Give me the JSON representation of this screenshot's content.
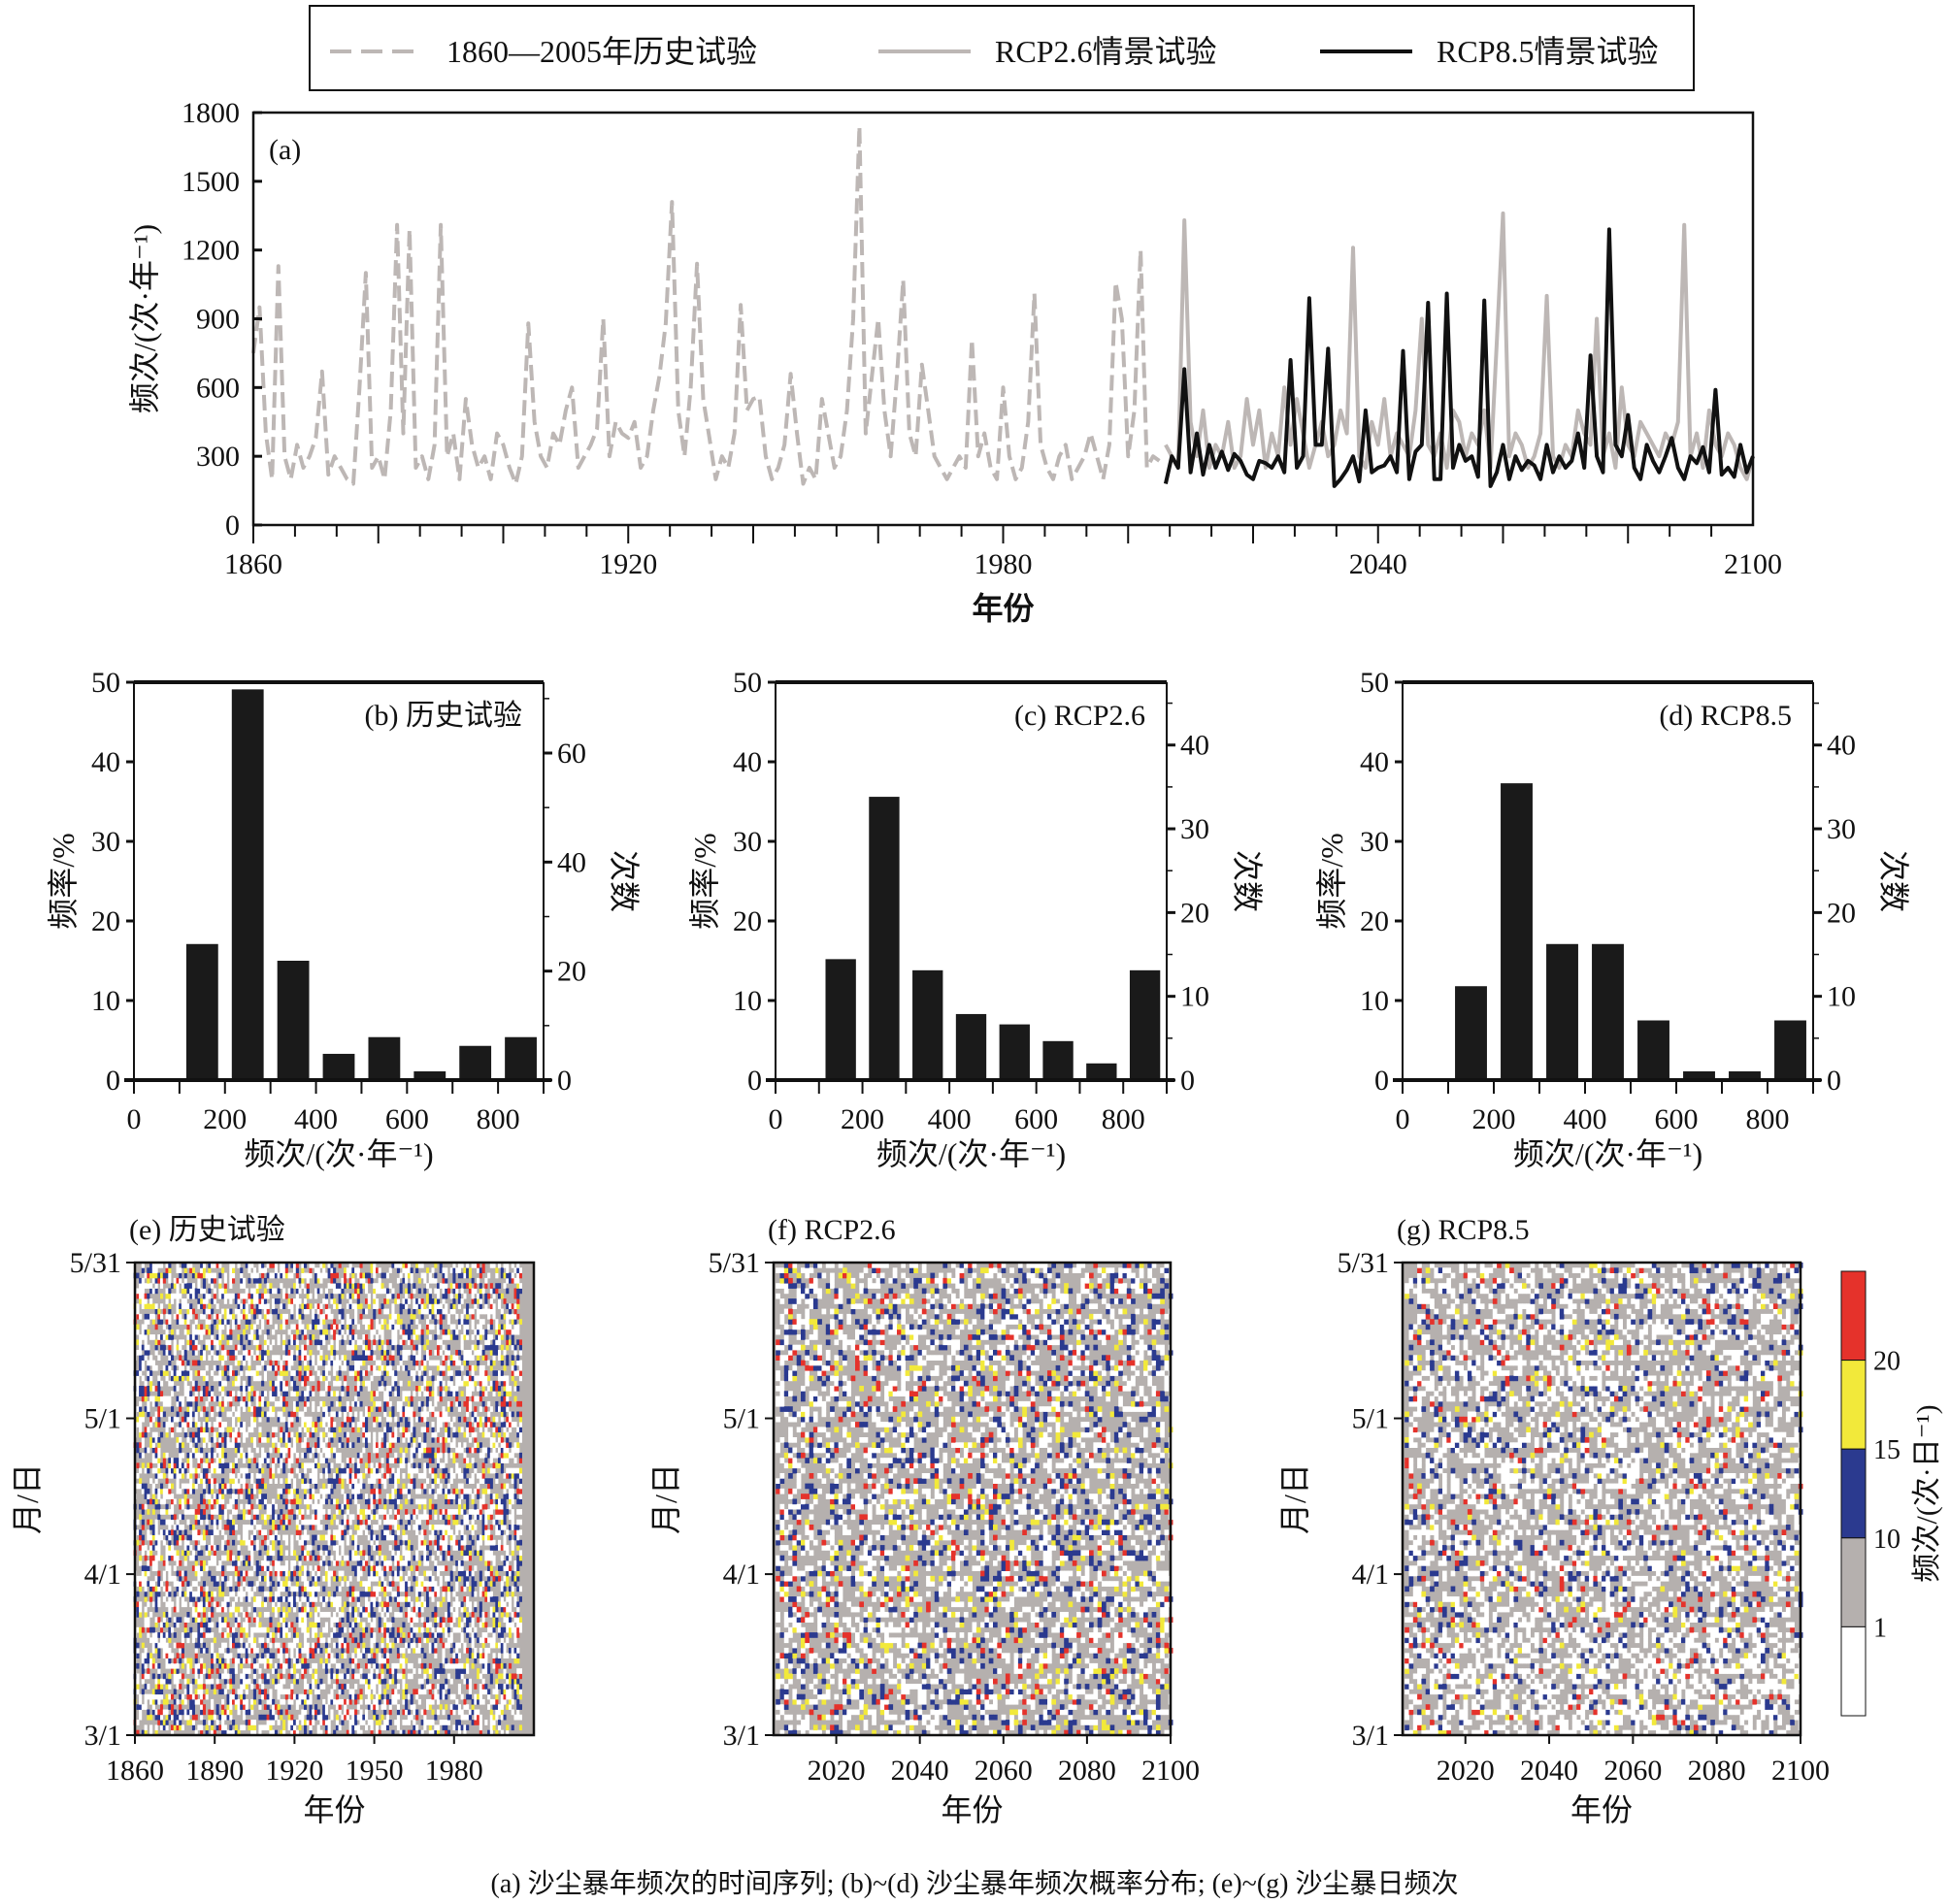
{
  "colors": {
    "historical": "#bdb7b5",
    "rcp26": "#bdb7b5",
    "rcp85": "#111111",
    "bar": "#1a1a1a",
    "heat_white": "#ffffff",
    "heat_gray": "#b5b0ae",
    "heat_blue": "#2b3a8f",
    "heat_yellow": "#f2e93a",
    "heat_red": "#e5322b"
  },
  "caption": "(a) 沙尘暴年频次的时间序列; (b)~(d) 沙尘暴年频次概率分布; (e)~(g) 沙尘暴日频次",
  "chart_data": [
    {
      "type": "line",
      "panel_label": "(a)",
      "xlabel": "年份",
      "ylabel": "频次/(次·年⁻¹)",
      "xlim": [
        1860,
        2100
      ],
      "ylim": [
        0,
        1800
      ],
      "xticks": [
        1860,
        1920,
        1980,
        2040,
        2100
      ],
      "yticks": [
        0,
        300,
        600,
        900,
        1200,
        1500,
        1800
      ],
      "legend_position": "top, outside box",
      "series": [
        {
          "name": "1860—2005年历史试验",
          "style": "dashed gray",
          "x_start": 1860,
          "values": [
            750,
            950,
            400,
            200,
            1130,
            300,
            200,
            350,
            250,
            300,
            380,
            670,
            220,
            300,
            250,
            200,
            180,
            600,
            1100,
            250,
            300,
            200,
            500,
            1310,
            400,
            1290,
            250,
            300,
            200,
            350,
            1310,
            300,
            400,
            200,
            550,
            350,
            250,
            300,
            200,
            400,
            350,
            250,
            180,
            300,
            880,
            450,
            300,
            250,
            400,
            350,
            500,
            600,
            250,
            300,
            350,
            420,
            900,
            300,
            450,
            400,
            380,
            450,
            250,
            300,
            500,
            650,
            880,
            1410,
            500,
            300,
            600,
            1140,
            550,
            380,
            200,
            300,
            250,
            400,
            960,
            500,
            550,
            560,
            300,
            200,
            250,
            350,
            660,
            400,
            180,
            250,
            200,
            550,
            400,
            250,
            300,
            500,
            900,
            1740,
            400,
            650,
            900,
            500,
            300,
            650,
            1070,
            400,
            300,
            700,
            500,
            300,
            250,
            200,
            250,
            300,
            250,
            810,
            300,
            400,
            250,
            200,
            600,
            300,
            200,
            250,
            450,
            1010,
            350,
            250,
            200,
            300,
            350,
            200,
            250,
            300,
            400,
            300,
            200,
            350,
            1060,
            900,
            300,
            500,
            1200,
            250,
            300,
            280
          ]
        },
        {
          "name": "RCP2.6情景试验",
          "style": "solid gray",
          "x_start": 2006,
          "values": [
            350,
            300,
            250,
            1330,
            450,
            300,
            500,
            250,
            350,
            300,
            450,
            250,
            300,
            550,
            350,
            500,
            250,
            400,
            300,
            600,
            350,
            550,
            400,
            250,
            350,
            450,
            300,
            350,
            500,
            400,
            1210,
            300,
            250,
            450,
            350,
            550,
            300,
            400,
            350,
            300,
            500,
            900,
            350,
            300,
            400,
            250,
            500,
            450,
            300,
            400,
            350,
            500,
            250,
            800,
            1360,
            300,
            400,
            350,
            250,
            300,
            400,
            1000,
            300,
            250,
            350,
            300,
            500,
            400,
            350,
            900,
            300,
            400,
            250,
            600,
            350,
            300,
            450,
            400,
            350,
            300,
            400,
            350,
            450,
            1310,
            300,
            400,
            250,
            500,
            350,
            300,
            400,
            350,
            250,
            200,
            300
          ]
        },
        {
          "name": "RCP8.5情景试验",
          "style": "solid black",
          "x_start": 2006,
          "values": [
            180,
            300,
            250,
            680,
            230,
            400,
            220,
            350,
            250,
            320,
            240,
            310,
            280,
            220,
            200,
            280,
            270,
            250,
            300,
            230,
            720,
            250,
            300,
            990,
            350,
            350,
            770,
            170,
            200,
            240,
            300,
            190,
            500,
            230,
            250,
            260,
            300,
            230,
            760,
            200,
            320,
            350,
            970,
            200,
            200,
            1010,
            250,
            350,
            280,
            300,
            210,
            980,
            170,
            230,
            350,
            200,
            300,
            240,
            280,
            260,
            200,
            350,
            230,
            300,
            250,
            280,
            400,
            250,
            740,
            300,
            230,
            1290,
            350,
            300,
            480,
            250,
            200,
            350,
            280,
            230,
            300,
            380,
            250,
            200,
            300,
            270,
            340,
            230,
            590,
            220,
            250,
            210,
            350,
            230,
            300
          ]
        }
      ]
    },
    {
      "type": "bar",
      "panel_label": "(b) 历史试验",
      "xlabel": "频次/(次·年⁻¹)",
      "ylabel": "频率/%",
      "y2label": "次数",
      "xlim": [
        0,
        900
      ],
      "ylim": [
        0,
        50
      ],
      "y2lim": [
        0,
        73
      ],
      "xticks": [
        0,
        200,
        400,
        600,
        800
      ],
      "yticks": [
        0,
        10,
        20,
        30,
        40,
        50
      ],
      "y2ticks": [
        0,
        20,
        40,
        60
      ],
      "bin_centers": [
        150,
        250,
        350,
        450,
        550,
        650,
        750,
        850
      ],
      "values": [
        17.1,
        49.1,
        15.0,
        3.3,
        5.4,
        1.1,
        4.3,
        5.4
      ]
    },
    {
      "type": "bar",
      "panel_label": "(c) RCP2.6",
      "xlabel": "频次/(次·年⁻¹)",
      "ylabel": "频率/%",
      "y2label": "次数",
      "xlim": [
        0,
        900
      ],
      "ylim": [
        0,
        50
      ],
      "y2lim": [
        0,
        47.5
      ],
      "xticks": [
        0,
        200,
        400,
        600,
        800
      ],
      "yticks": [
        0,
        10,
        20,
        30,
        40,
        50
      ],
      "y2ticks": [
        0,
        10,
        20,
        30,
        40
      ],
      "bin_centers": [
        150,
        250,
        350,
        450,
        550,
        650,
        750,
        850
      ],
      "values": [
        15.2,
        35.6,
        13.8,
        8.3,
        7.0,
        4.9,
        2.1,
        13.8
      ]
    },
    {
      "type": "bar",
      "panel_label": "(d) RCP8.5",
      "xlabel": "频次/(次·年⁻¹)",
      "ylabel": "频率/%",
      "y2label": "次数",
      "xlim": [
        0,
        900
      ],
      "ylim": [
        0,
        50
      ],
      "y2lim": [
        0,
        47.5
      ],
      "xticks": [
        0,
        200,
        400,
        600,
        800
      ],
      "yticks": [
        0,
        10,
        20,
        30,
        40,
        50
      ],
      "y2ticks": [
        0,
        10,
        20,
        30,
        40
      ],
      "bin_centers": [
        150,
        250,
        350,
        450,
        550,
        650,
        750,
        850
      ],
      "values": [
        11.8,
        37.3,
        17.1,
        17.1,
        7.5,
        1.1,
        1.1,
        7.5
      ]
    },
    {
      "type": "heatmap",
      "panel_label": "(e) 历史试验",
      "xlabel": "年份",
      "ylabel": "月/日",
      "xlim": [
        1860,
        2010
      ],
      "year_range": [
        1860,
        2005
      ],
      "xticks": [
        1860,
        1890,
        1920,
        1950,
        1980
      ],
      "yticks": [
        "3/1",
        "4/1",
        "5/1",
        "5/31"
      ]
    },
    {
      "type": "heatmap",
      "panel_label": "(f) RCP2.6",
      "xlabel": "年份",
      "ylabel": "月/日",
      "xlim": [
        2005,
        2100
      ],
      "year_range": [
        2006,
        2100
      ],
      "xticks": [
        2020,
        2040,
        2060,
        2080,
        2100
      ],
      "yticks": [
        "3/1",
        "4/1",
        "5/1",
        "5/31"
      ]
    },
    {
      "type": "heatmap",
      "panel_label": "(g) RCP8.5",
      "xlabel": "年份",
      "ylabel": "月/日",
      "xlim": [
        2005,
        2100
      ],
      "year_range": [
        2006,
        2100
      ],
      "xticks": [
        2020,
        2040,
        2060,
        2080,
        2100
      ],
      "yticks": [
        "3/1",
        "4/1",
        "5/1",
        "5/31"
      ]
    }
  ],
  "colorbar": {
    "label": "频次/(次·日⁻¹)",
    "tick_labels": [
      "1",
      "10",
      "15",
      "20"
    ],
    "levels": [
      "white",
      "gray",
      "blue",
      "yellow",
      "red"
    ]
  }
}
